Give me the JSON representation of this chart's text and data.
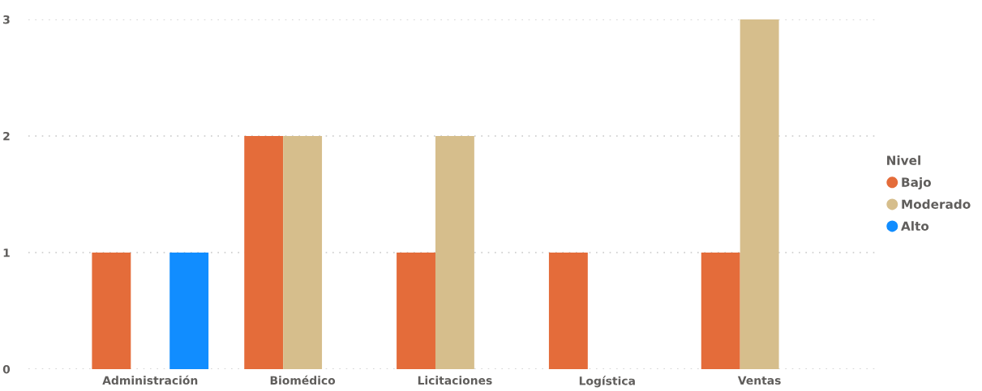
{
  "chart_data": {
    "type": "bar",
    "categories": [
      "Administración",
      "Biomédico",
      "Licitaciones",
      "Logística",
      "Ventas"
    ],
    "series": [
      {
        "name": "Bajo",
        "color": "#e46c3a",
        "values": [
          1,
          2,
          1,
          1,
          1
        ]
      },
      {
        "name": "Moderado",
        "color": "#d6be8c",
        "values": [
          null,
          2,
          2,
          null,
          3
        ]
      },
      {
        "name": "Alto",
        "color": "#118dff",
        "values": [
          1,
          null,
          null,
          null,
          null
        ]
      }
    ],
    "legend_title": "Nivel",
    "legend": "right",
    "ylim": [
      0,
      3
    ],
    "yticks": [
      0,
      1,
      2,
      3
    ],
    "grid": "y"
  }
}
